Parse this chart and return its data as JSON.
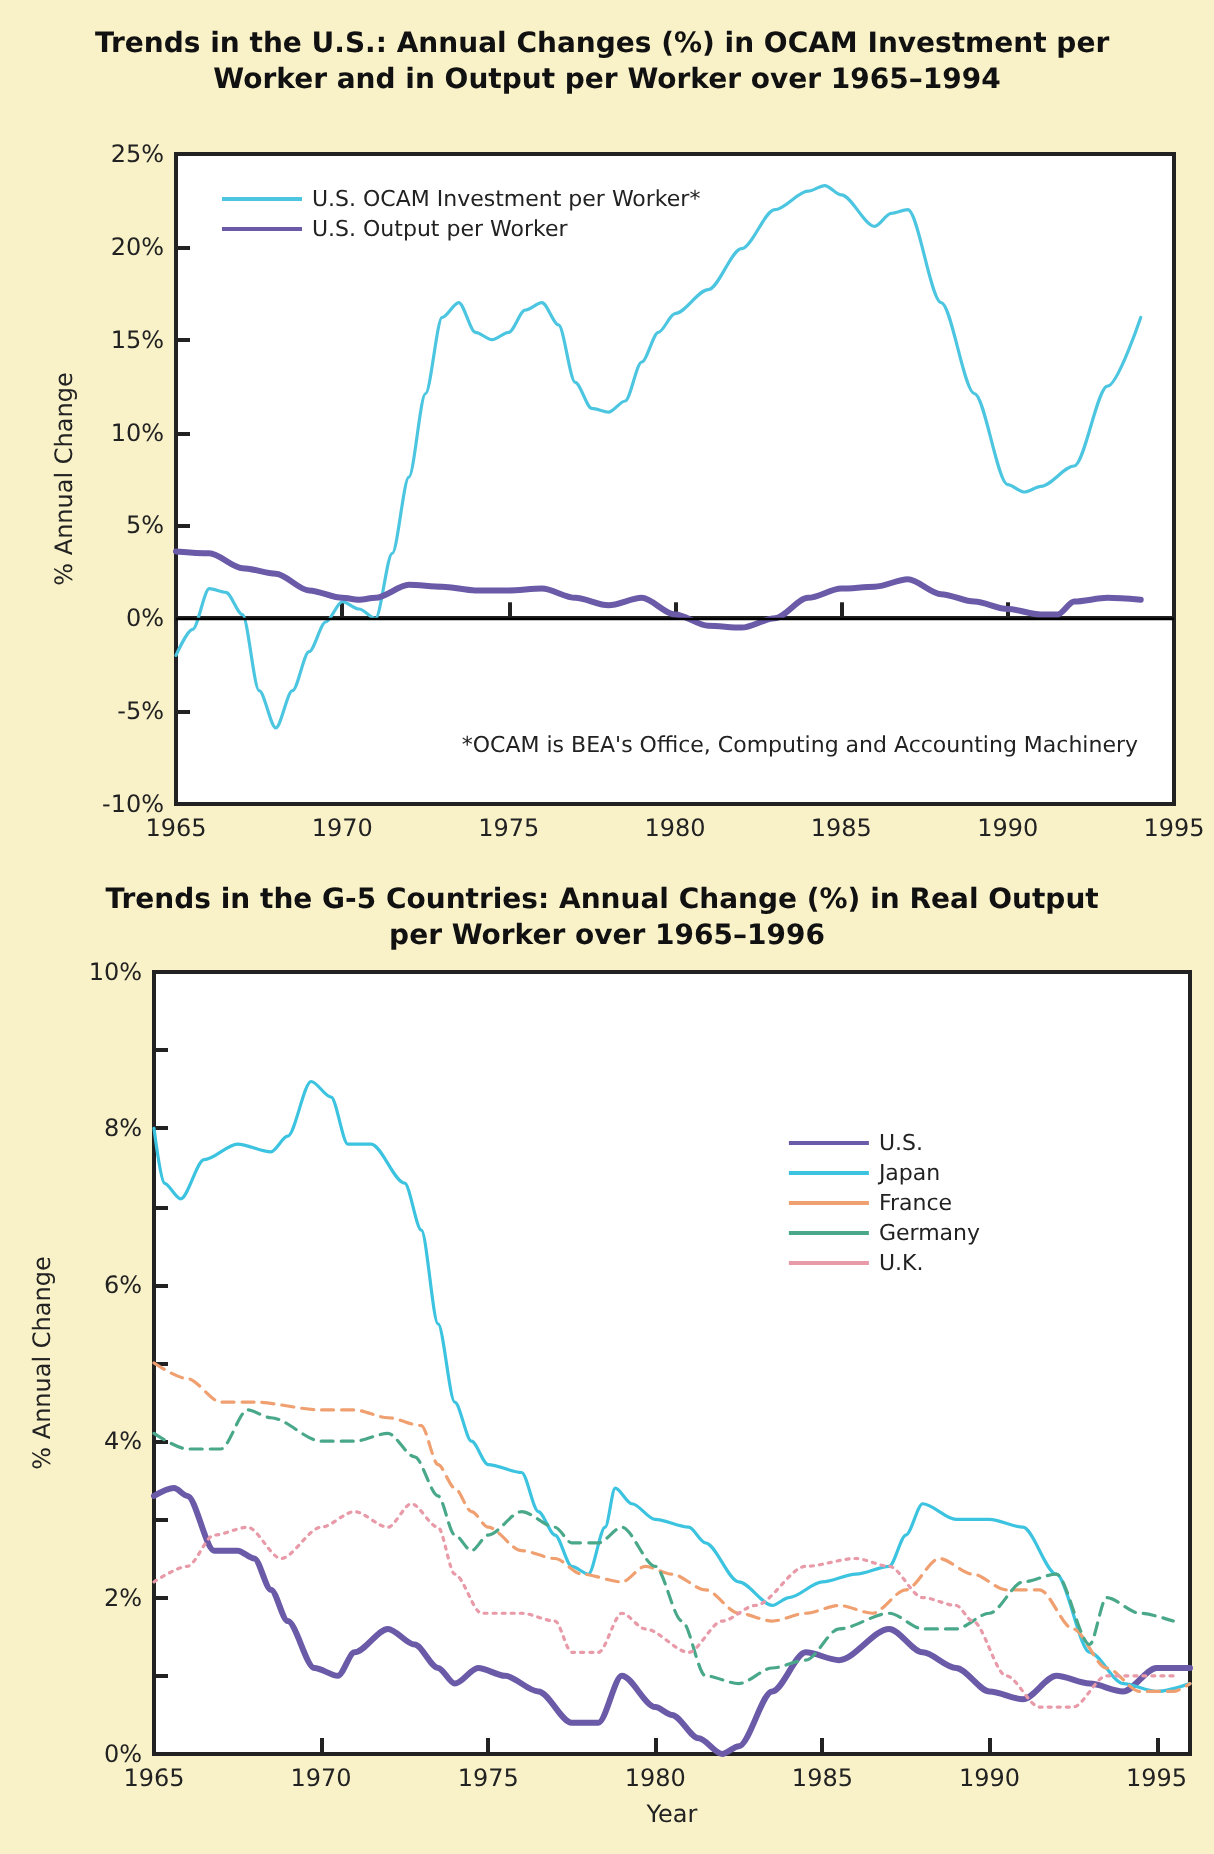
{
  "chart_data": [
    {
      "type": "line",
      "title": "Trends in the U.S.: Annual Changes (%) in OCAM Investment per Worker and in Output per Worker over 1965–1994",
      "ylabel": "% Annual Change",
      "xlim": [
        1965,
        1995
      ],
      "xticks": [
        1965,
        1970,
        1975,
        1980,
        1985,
        1990,
        1995
      ],
      "ylim": [
        -10,
        25
      ],
      "yticks": [
        {
          "value": -10,
          "label": "-10%"
        },
        {
          "value": -5,
          "label": "-5%"
        },
        {
          "value": 0,
          "label": "0%"
        },
        {
          "value": 5,
          "label": "5%"
        },
        {
          "value": 10,
          "label": "10%"
        },
        {
          "value": 15,
          "label": "15%"
        },
        {
          "value": 20,
          "label": "20%"
        },
        {
          "value": 25,
          "label": "25%"
        }
      ],
      "grid": false,
      "legend": "top left",
      "marker": "none",
      "ref_lines": [
        {
          "axis": "y",
          "value": 0,
          "color": "#000000"
        }
      ],
      "annotations": [
        "*OCAM is BEA's Office, Computing and Accounting Machinery"
      ],
      "series": [
        {
          "name": "U.S. OCAM Investment per Worker*",
          "color": "#4cc6e0",
          "line_style": "solid",
          "x": [
            1965,
            1965.5,
            1966,
            1966.5,
            1967,
            1967.5,
            1968,
            1968.5,
            1969,
            1969.5,
            1970,
            1970.5,
            1971,
            1971.5,
            1972,
            1972.5,
            1973,
            1973.5,
            1974,
            1974.5,
            1975,
            1975.5,
            1976,
            1976.5,
            1977,
            1977.5,
            1978,
            1978.5,
            1979,
            1979.5,
            1980,
            1981,
            1982,
            1983,
            1984,
            1984.5,
            1985,
            1986,
            1986.5,
            1987,
            1988,
            1989,
            1990,
            1990.5,
            1991,
            1992,
            1993,
            1994
          ],
          "values": [
            -2.0,
            -0.6,
            1.6,
            1.4,
            0.2,
            -3.9,
            -5.9,
            -3.9,
            -1.8,
            -0.2,
            0.9,
            0.5,
            0.0,
            3.5,
            7.6,
            12.1,
            16.2,
            17.0,
            15.4,
            15.0,
            15.4,
            16.6,
            17.0,
            15.8,
            12.7,
            11.3,
            11.1,
            11.7,
            13.8,
            15.4,
            16.4,
            17.7,
            19.9,
            22.0,
            23.0,
            23.3,
            22.8,
            21.1,
            21.8,
            22.0,
            17.0,
            12.1,
            7.2,
            6.8,
            7.1,
            8.2,
            12.5,
            16.2
          ]
        },
        {
          "name": "U.S. Output per Worker",
          "color": "#6a5aa8",
          "line_style": "solid",
          "x": [
            1965,
            1966,
            1967,
            1968,
            1969,
            1970,
            1970.5,
            1971,
            1972,
            1973,
            1974,
            1975,
            1976,
            1977,
            1978,
            1979,
            1980,
            1981,
            1982,
            1983,
            1984,
            1985,
            1986,
            1987,
            1988,
            1989,
            1990,
            1991,
            1991.5,
            1992,
            1993,
            1994
          ],
          "values": [
            3.6,
            3.5,
            2.7,
            2.4,
            1.5,
            1.1,
            1.0,
            1.1,
            1.8,
            1.7,
            1.5,
            1.5,
            1.6,
            1.1,
            0.7,
            1.1,
            0.2,
            -0.4,
            -0.5,
            0.0,
            1.1,
            1.6,
            1.7,
            2.1,
            1.3,
            0.9,
            0.5,
            0.2,
            0.2,
            0.9,
            1.1,
            1.0
          ]
        }
      ]
    },
    {
      "type": "line",
      "title": "Trends in the G-5 Countries: Annual Change (%) in Real Output per Worker over 1965–1996",
      "xlabel": "Year",
      "ylabel": "% Annual Change",
      "xlim": [
        1965,
        1996
      ],
      "xticks": [
        1965,
        1970,
        1975,
        1980,
        1985,
        1990,
        1995
      ],
      "ylim": [
        0,
        10
      ],
      "yticks": [
        {
          "value": 0,
          "label": "0%"
        },
        {
          "value": 1,
          "label": null
        },
        {
          "value": 2,
          "label": "2%"
        },
        {
          "value": 3,
          "label": null
        },
        {
          "value": 4,
          "label": "4%"
        },
        {
          "value": 5,
          "label": null
        },
        {
          "value": 6,
          "label": "6%"
        },
        {
          "value": 7,
          "label": null
        },
        {
          "value": 8,
          "label": "8%"
        },
        {
          "value": 9,
          "label": null
        },
        {
          "value": 10,
          "label": "10%"
        }
      ],
      "grid": false,
      "legend": "top right",
      "marker": "none",
      "series": [
        {
          "name": "U.S.",
          "color": "#6a5aa8",
          "line_style": "solid",
          "x": [
            1965,
            1965.6,
            1966,
            1966.8,
            1967.5,
            1968,
            1968.5,
            1969,
            1969.8,
            1970.5,
            1971,
            1972,
            1972.8,
            1973.5,
            1974,
            1974.7,
            1975.5,
            1976.5,
            1977.5,
            1978.3,
            1979,
            1980,
            1980.5,
            1981.3,
            1982,
            1982.5,
            1983.5,
            1984.5,
            1985.5,
            1987,
            1988,
            1989,
            1990,
            1991,
            1992,
            1993,
            1994,
            1995,
            1996
          ],
          "values": [
            3.3,
            3.4,
            3.3,
            2.6,
            2.6,
            2.5,
            2.1,
            1.7,
            1.1,
            1.0,
            1.3,
            1.6,
            1.4,
            1.1,
            0.9,
            1.1,
            1.0,
            0.8,
            0.4,
            0.4,
            1.0,
            0.6,
            0.5,
            0.2,
            0.0,
            0.1,
            0.8,
            1.3,
            1.2,
            1.6,
            1.3,
            1.1,
            0.8,
            0.7,
            1.0,
            0.9,
            0.8,
            1.1,
            1.1
          ]
        },
        {
          "name": "Japan",
          "color": "#3cc3e0",
          "line_style": "solid",
          "x": [
            1965,
            1965.3,
            1965.8,
            1966.5,
            1967.5,
            1968.5,
            1969,
            1969.7,
            1970.3,
            1970.8,
            1971.5,
            1972.5,
            1973,
            1973.5,
            1974,
            1974.5,
            1975,
            1976,
            1976.5,
            1977,
            1977.5,
            1978,
            1978.5,
            1978.8,
            1979.3,
            1980,
            1981,
            1981.5,
            1982.5,
            1983.5,
            1984,
            1985,
            1986,
            1987,
            1987.5,
            1988,
            1989,
            1990,
            1991,
            1992,
            1993,
            1994,
            1995,
            1996
          ],
          "values": [
            8.0,
            7.3,
            7.1,
            7.6,
            7.8,
            7.7,
            7.9,
            8.6,
            8.4,
            7.8,
            7.8,
            7.3,
            6.7,
            5.5,
            4.5,
            4.0,
            3.7,
            3.6,
            3.1,
            2.8,
            2.4,
            2.3,
            2.9,
            3.4,
            3.2,
            3.0,
            2.9,
            2.7,
            2.2,
            1.9,
            2.0,
            2.2,
            2.3,
            2.4,
            2.8,
            3.2,
            3.0,
            3.0,
            2.9,
            2.3,
            1.3,
            0.9,
            0.8,
            0.9
          ]
        },
        {
          "name": "France",
          "color": "#f0a070",
          "line_style": "dashed",
          "x": [
            1965,
            1966,
            1967,
            1968,
            1970,
            1971,
            1972,
            1973,
            1973.5,
            1974,
            1974.5,
            1975,
            1976,
            1977,
            1977.8,
            1979,
            1979.7,
            1980.5,
            1981.5,
            1982.5,
            1983.5,
            1984.5,
            1985.5,
            1986.5,
            1987.5,
            1988.5,
            1989.5,
            1990.5,
            1991.5,
            1992.5,
            1993.5,
            1994.5,
            1995.5,
            1996
          ],
          "values": [
            5.0,
            4.8,
            4.5,
            4.5,
            4.4,
            4.4,
            4.3,
            4.2,
            3.7,
            3.4,
            3.1,
            2.9,
            2.6,
            2.5,
            2.3,
            2.2,
            2.4,
            2.3,
            2.1,
            1.8,
            1.7,
            1.8,
            1.9,
            1.8,
            2.1,
            2.5,
            2.3,
            2.1,
            2.1,
            1.6,
            1.1,
            0.8,
            0.8,
            0.9
          ]
        },
        {
          "name": "Germany",
          "color": "#4aa88a",
          "line_style": "dashed",
          "x": [
            1965,
            1966,
            1967,
            1967.8,
            1968.5,
            1970,
            1971,
            1972,
            1972.8,
            1973.5,
            1974,
            1974.5,
            1975,
            1976,
            1977,
            1977.5,
            1978.3,
            1979,
            1980,
            1980.8,
            1981.5,
            1982.5,
            1983.5,
            1984.5,
            1985.5,
            1987,
            1988,
            1989,
            1990,
            1991,
            1992,
            1993,
            1993.5,
            1994.5,
            1995.5
          ],
          "values": [
            4.1,
            3.9,
            3.9,
            4.4,
            4.3,
            4.0,
            4.0,
            4.1,
            3.8,
            3.3,
            2.8,
            2.6,
            2.8,
            3.1,
            2.9,
            2.7,
            2.7,
            2.9,
            2.4,
            1.7,
            1.0,
            0.9,
            1.1,
            1.2,
            1.6,
            1.8,
            1.6,
            1.6,
            1.8,
            2.2,
            2.3,
            1.4,
            2.0,
            1.8,
            1.7
          ]
        },
        {
          "name": "U.K.",
          "color": "#e89aa8",
          "line_style": "dotted",
          "x": [
            1965,
            1966,
            1966.8,
            1967.8,
            1968.8,
            1970,
            1971,
            1972,
            1972.7,
            1973.5,
            1974,
            1974.8,
            1976,
            1977,
            1977.5,
            1978.3,
            1979,
            1979.7,
            1981,
            1982,
            1983,
            1984.5,
            1986,
            1987,
            1988,
            1989,
            1989.5,
            1990.5,
            1991.5,
            1992.5,
            1993.5,
            1994.5,
            1995.5
          ],
          "values": [
            2.2,
            2.4,
            2.8,
            2.9,
            2.5,
            2.9,
            3.1,
            2.9,
            3.2,
            2.9,
            2.3,
            1.8,
            1.8,
            1.7,
            1.3,
            1.3,
            1.8,
            1.6,
            1.3,
            1.7,
            1.9,
            2.4,
            2.5,
            2.4,
            2.0,
            1.9,
            1.7,
            1.0,
            0.6,
            0.6,
            1.0,
            1.0,
            1.0
          ]
        }
      ]
    }
  ]
}
